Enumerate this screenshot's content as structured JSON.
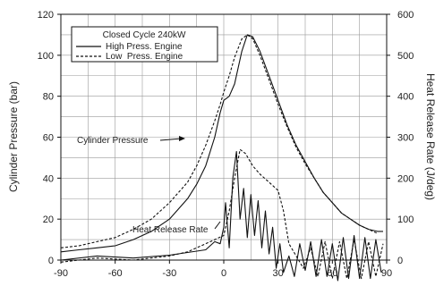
{
  "chart_data": {
    "type": "line",
    "x_ticks": [
      -90,
      -60,
      -30,
      0,
      30,
      60,
      90
    ],
    "xlim": [
      -90,
      90
    ],
    "grid": true,
    "legend_position": "top-left",
    "y_left": {
      "label": "Cylinder Pressure (bar)",
      "lim": [
        0,
        120
      ],
      "ticks": [
        0,
        20,
        40,
        60,
        80,
        100,
        120
      ]
    },
    "y_right": {
      "label": "Heat Release Rate (J/deg)",
      "lim": [
        0,
        600
      ],
      "ticks": [
        0,
        100,
        200,
        300,
        400,
        500,
        600
      ]
    },
    "legend": {
      "title": "Closed Cycle 240kW",
      "entries": [
        "High Press. Engine",
        "Low  Press. Engine"
      ]
    },
    "annotations": [
      {
        "text": "Cylinder Pressure"
      },
      {
        "text": "Heat Release Rate"
      }
    ],
    "series": [
      {
        "name": "High Press. Engine",
        "quantity": "Cylinder Pressure",
        "axis": "left",
        "style": "solid",
        "points": [
          [
            -90,
            4
          ],
          [
            -80,
            5
          ],
          [
            -70,
            6
          ],
          [
            -60,
            7
          ],
          [
            -50,
            10
          ],
          [
            -40,
            14
          ],
          [
            -30,
            20
          ],
          [
            -20,
            30
          ],
          [
            -15,
            37
          ],
          [
            -10,
            46
          ],
          [
            -5,
            60
          ],
          [
            -2,
            72
          ],
          [
            0,
            78
          ],
          [
            3,
            80
          ],
          [
            6,
            86
          ],
          [
            10,
            102
          ],
          [
            13,
            110
          ],
          [
            16,
            109
          ],
          [
            20,
            102
          ],
          [
            25,
            90
          ],
          [
            30,
            78
          ],
          [
            35,
            66
          ],
          [
            40,
            56
          ],
          [
            45,
            48
          ],
          [
            50,
            40
          ],
          [
            55,
            33
          ],
          [
            60,
            28
          ],
          [
            65,
            23
          ],
          [
            70,
            20
          ],
          [
            75,
            17
          ],
          [
            80,
            15
          ],
          [
            85,
            14
          ],
          [
            88,
            14
          ]
        ]
      },
      {
        "name": "Low  Press. Engine",
        "quantity": "Cylinder Pressure",
        "axis": "left",
        "style": "dashed",
        "points": [
          [
            -90,
            6
          ],
          [
            -80,
            7
          ],
          [
            -70,
            9
          ],
          [
            -60,
            11
          ],
          [
            -50,
            15
          ],
          [
            -40,
            20
          ],
          [
            -30,
            28
          ],
          [
            -20,
            38
          ],
          [
            -15,
            46
          ],
          [
            -10,
            56
          ],
          [
            -5,
            68
          ],
          [
            -2,
            76
          ],
          [
            0,
            82
          ],
          [
            3,
            90
          ],
          [
            6,
            99
          ],
          [
            10,
            108
          ],
          [
            13,
            110
          ],
          [
            16,
            108
          ],
          [
            20,
            100
          ],
          [
            25,
            88
          ],
          [
            30,
            76
          ],
          [
            35,
            65
          ],
          [
            40,
            55
          ],
          [
            45,
            47
          ],
          [
            50,
            40
          ],
          [
            55,
            33
          ],
          [
            60,
            28
          ],
          [
            65,
            23
          ],
          [
            70,
            20
          ],
          [
            75,
            17
          ],
          [
            80,
            15
          ],
          [
            85,
            13
          ]
        ]
      },
      {
        "name": "High Press. Engine",
        "quantity": "Heat Release Rate",
        "axis": "right",
        "style": "solid",
        "points": [
          [
            -90,
            0
          ],
          [
            -70,
            10
          ],
          [
            -50,
            5
          ],
          [
            -30,
            12
          ],
          [
            -10,
            25
          ],
          [
            -5,
            45
          ],
          [
            -2,
            40
          ],
          [
            0,
            80
          ],
          [
            1,
            140
          ],
          [
            3,
            30
          ],
          [
            5,
            200
          ],
          [
            7,
            265
          ],
          [
            9,
            100
          ],
          [
            11,
            175
          ],
          [
            13,
            55
          ],
          [
            15,
            160
          ],
          [
            17,
            60
          ],
          [
            19,
            145
          ],
          [
            21,
            30
          ],
          [
            23,
            120
          ],
          [
            25,
            15
          ],
          [
            27,
            80
          ],
          [
            29,
            -20
          ],
          [
            31,
            40
          ],
          [
            33,
            -30
          ],
          [
            36,
            10
          ],
          [
            39,
            -40
          ],
          [
            42,
            40
          ],
          [
            45,
            -25
          ],
          [
            48,
            45
          ],
          [
            51,
            -40
          ],
          [
            54,
            50
          ],
          [
            57,
            -40
          ],
          [
            60,
            40
          ],
          [
            63,
            -50
          ],
          [
            66,
            55
          ],
          [
            69,
            -45
          ],
          [
            72,
            60
          ],
          [
            75,
            -45
          ],
          [
            78,
            55
          ],
          [
            81,
            -45
          ],
          [
            84,
            50
          ],
          [
            87,
            -30
          ]
        ]
      },
      {
        "name": "Low  Press. Engine",
        "quantity": "Heat Release Rate",
        "axis": "right",
        "style": "dashed",
        "points": [
          [
            -90,
            -5
          ],
          [
            -70,
            5
          ],
          [
            -50,
            0
          ],
          [
            -30,
            10
          ],
          [
            -20,
            20
          ],
          [
            -10,
            40
          ],
          [
            0,
            60
          ],
          [
            3,
            120
          ],
          [
            6,
            200
          ],
          [
            9,
            270
          ],
          [
            12,
            260
          ],
          [
            16,
            230
          ],
          [
            20,
            210
          ],
          [
            25,
            190
          ],
          [
            30,
            170
          ],
          [
            33,
            120
          ],
          [
            36,
            40
          ],
          [
            40,
            10
          ],
          [
            44,
            -20
          ],
          [
            48,
            30
          ],
          [
            52,
            -40
          ],
          [
            56,
            45
          ],
          [
            60,
            -45
          ],
          [
            64,
            45
          ],
          [
            68,
            -45
          ],
          [
            72,
            50
          ],
          [
            76,
            -45
          ],
          [
            80,
            45
          ],
          [
            84,
            -40
          ],
          [
            88,
            40
          ]
        ]
      }
    ]
  }
}
